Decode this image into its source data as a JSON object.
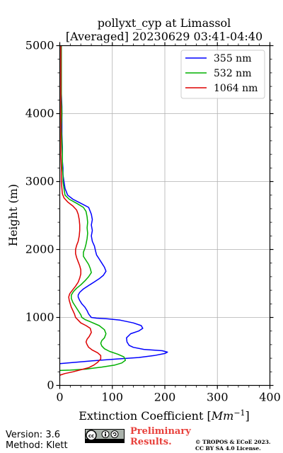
{
  "chart_data": {
    "type": "line",
    "title_line1": "pollyxt_cyp at Limassol",
    "title_line2": "[Averaged] 20230629 03:41-04:40",
    "xlabel": "Extinction Coefficient [",
    "xlabel_unit": "Mm",
    "xlabel_exp": "−1",
    "xlabel_close": "]",
    "ylabel": "Height (m)",
    "xlim": [
      0,
      400
    ],
    "ylim": [
      0,
      5000
    ],
    "xticks": [
      "0",
      "100",
      "200",
      "300",
      "400"
    ],
    "yticks": [
      "0",
      "1000",
      "2000",
      "3000",
      "4000",
      "5000"
    ],
    "grid": true,
    "legend_position": "top-right",
    "series": [
      {
        "name": "355 nm",
        "color": "#0000ff",
        "points": [
          [
            0,
            320
          ],
          [
            60,
            360
          ],
          [
            110,
            390
          ],
          [
            150,
            410
          ],
          [
            180,
            440
          ],
          [
            200,
            470
          ],
          [
            205,
            490
          ],
          [
            195,
            510
          ],
          [
            160,
            530
          ],
          [
            140,
            560
          ],
          [
            132,
            590
          ],
          [
            128,
            640
          ],
          [
            127,
            700
          ],
          [
            135,
            760
          ],
          [
            150,
            800
          ],
          [
            158,
            840
          ],
          [
            155,
            880
          ],
          [
            140,
            920
          ],
          [
            115,
            960
          ],
          [
            90,
            980
          ],
          [
            70,
            990
          ],
          [
            60,
            1000
          ],
          [
            55,
            1050
          ],
          [
            52,
            1100
          ],
          [
            48,
            1150
          ],
          [
            42,
            1200
          ],
          [
            38,
            1250
          ],
          [
            35,
            1300
          ],
          [
            35,
            1330
          ],
          [
            38,
            1370
          ],
          [
            45,
            1420
          ],
          [
            55,
            1470
          ],
          [
            65,
            1520
          ],
          [
            75,
            1570
          ],
          [
            83,
            1620
          ],
          [
            88,
            1680
          ],
          [
            85,
            1740
          ],
          [
            80,
            1800
          ],
          [
            75,
            1860
          ],
          [
            70,
            1920
          ],
          [
            68,
            1980
          ],
          [
            66,
            2050
          ],
          [
            62,
            2120
          ],
          [
            60,
            2200
          ],
          [
            62,
            2280
          ],
          [
            60,
            2360
          ],
          [
            62,
            2440
          ],
          [
            60,
            2520
          ],
          [
            57,
            2580
          ],
          [
            55,
            2620
          ],
          [
            40,
            2680
          ],
          [
            25,
            2740
          ],
          [
            15,
            2800
          ],
          [
            10,
            2900
          ],
          [
            8,
            3000
          ],
          [
            6,
            3100
          ],
          [
            6,
            3200
          ],
          [
            5,
            3300
          ],
          [
            5,
            3500
          ],
          [
            4,
            3700
          ],
          [
            4,
            3900
          ],
          [
            4,
            4100
          ],
          [
            3,
            4300
          ],
          [
            3,
            4500
          ],
          [
            3,
            4700
          ],
          [
            3,
            4900
          ],
          [
            3,
            5000
          ]
        ]
      },
      {
        "name": "532 nm",
        "color": "#00b000",
        "points": [
          [
            0,
            220
          ],
          [
            20,
            225
          ],
          [
            50,
            240
          ],
          [
            80,
            270
          ],
          [
            105,
            300
          ],
          [
            118,
            330
          ],
          [
            125,
            370
          ],
          [
            122,
            420
          ],
          [
            110,
            460
          ],
          [
            95,
            500
          ],
          [
            85,
            540
          ],
          [
            80,
            580
          ],
          [
            78,
            620
          ],
          [
            80,
            660
          ],
          [
            85,
            700
          ],
          [
            88,
            760
          ],
          [
            85,
            820
          ],
          [
            75,
            880
          ],
          [
            60,
            930
          ],
          [
            48,
            970
          ],
          [
            42,
            1000
          ],
          [
            40,
            1040
          ],
          [
            35,
            1100
          ],
          [
            30,
            1160
          ],
          [
            25,
            1220
          ],
          [
            22,
            1280
          ],
          [
            22,
            1330
          ],
          [
            26,
            1380
          ],
          [
            32,
            1430
          ],
          [
            40,
            1480
          ],
          [
            48,
            1540
          ],
          [
            55,
            1600
          ],
          [
            60,
            1660
          ],
          [
            58,
            1720
          ],
          [
            55,
            1780
          ],
          [
            50,
            1840
          ],
          [
            45,
            1900
          ],
          [
            45,
            1960
          ],
          [
            48,
            2020
          ],
          [
            50,
            2080
          ],
          [
            52,
            2160
          ],
          [
            53,
            2240
          ],
          [
            52,
            2320
          ],
          [
            53,
            2400
          ],
          [
            52,
            2480
          ],
          [
            50,
            2560
          ],
          [
            45,
            2620
          ],
          [
            32,
            2680
          ],
          [
            18,
            2740
          ],
          [
            10,
            2800
          ],
          [
            8,
            2900
          ],
          [
            6,
            3000
          ],
          [
            6,
            3100
          ],
          [
            5,
            3200
          ],
          [
            5,
            3400
          ],
          [
            4,
            3600
          ],
          [
            3,
            3800
          ],
          [
            4,
            4000
          ],
          [
            3,
            4200
          ],
          [
            3,
            4400
          ],
          [
            3,
            4600
          ],
          [
            3,
            4800
          ],
          [
            3,
            5000
          ]
        ]
      },
      {
        "name": "1064 nm",
        "color": "#dd0000",
        "points": [
          [
            0,
            150
          ],
          [
            10,
            175
          ],
          [
            25,
            200
          ],
          [
            40,
            230
          ],
          [
            55,
            260
          ],
          [
            65,
            300
          ],
          [
            72,
            340
          ],
          [
            78,
            390
          ],
          [
            78,
            440
          ],
          [
            72,
            480
          ],
          [
            62,
            520
          ],
          [
            55,
            560
          ],
          [
            52,
            600
          ],
          [
            50,
            640
          ],
          [
            52,
            680
          ],
          [
            56,
            720
          ],
          [
            60,
            780
          ],
          [
            58,
            840
          ],
          [
            50,
            880
          ],
          [
            40,
            920
          ],
          [
            35,
            960
          ],
          [
            30,
            1000
          ],
          [
            28,
            1050
          ],
          [
            25,
            1100
          ],
          [
            22,
            1150
          ],
          [
            20,
            1200
          ],
          [
            18,
            1250
          ],
          [
            17,
            1300
          ],
          [
            19,
            1350
          ],
          [
            24,
            1400
          ],
          [
            30,
            1460
          ],
          [
            35,
            1520
          ],
          [
            38,
            1580
          ],
          [
            40,
            1640
          ],
          [
            40,
            1700
          ],
          [
            38,
            1760
          ],
          [
            35,
            1820
          ],
          [
            32,
            1880
          ],
          [
            30,
            1940
          ],
          [
            30,
            2000
          ],
          [
            32,
            2060
          ],
          [
            35,
            2120
          ],
          [
            37,
            2200
          ],
          [
            38,
            2280
          ],
          [
            38,
            2360
          ],
          [
            37,
            2440
          ],
          [
            35,
            2520
          ],
          [
            32,
            2580
          ],
          [
            25,
            2640
          ],
          [
            15,
            2700
          ],
          [
            8,
            2760
          ],
          [
            5,
            2820
          ],
          [
            4,
            2900
          ],
          [
            3,
            3000
          ],
          [
            3,
            3200
          ],
          [
            2,
            3400
          ],
          [
            2,
            3600
          ],
          [
            2,
            3800
          ],
          [
            2,
            4000
          ],
          [
            2,
            4200
          ],
          [
            2,
            4400
          ],
          [
            2,
            4600
          ],
          [
            2,
            4800
          ],
          [
            2,
            5000
          ]
        ]
      }
    ]
  },
  "footer": {
    "version": "Version: 3.6",
    "method": "Method: Klett",
    "preliminary_line1": "Preliminary",
    "preliminary_line2": "Results.",
    "copyright_line1": "© TROPOS & ECoE 2023.",
    "copyright_line2": "CC BY SA 4.0 License.",
    "license_badge": "cc-by-sa-badge"
  }
}
